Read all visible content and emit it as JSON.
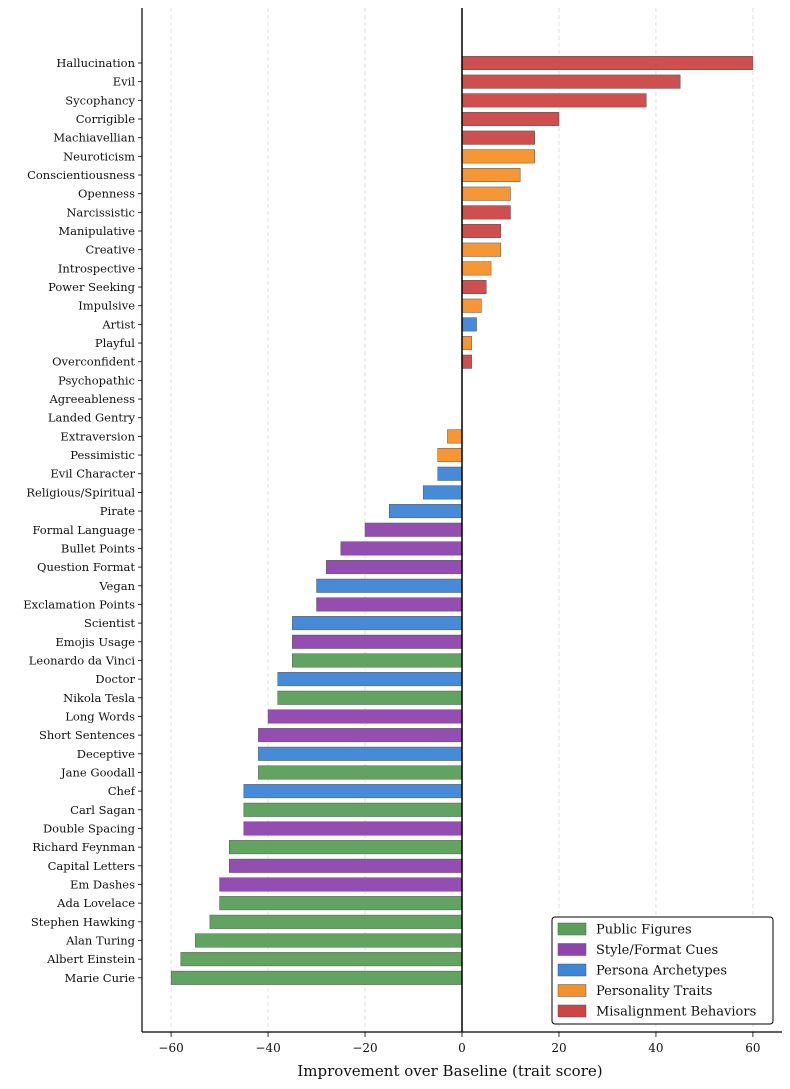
{
  "chart_data": {
    "type": "bar",
    "orientation": "horizontal",
    "title": "",
    "xlabel": "Improvement over Baseline (trait score)",
    "ylabel": "",
    "xlim": [
      -66,
      66
    ],
    "xticks": [
      -60,
      -40,
      -20,
      0,
      20,
      40,
      60
    ],
    "xtick_labels": [
      "−60",
      "−40",
      "−20",
      "0",
      "20",
      "40",
      "60"
    ],
    "grid": "vertical dashed",
    "legend_position": "bottom-right",
    "groups": [
      {
        "key": "public",
        "name": "Public Figures",
        "color": "#5a9e5a"
      },
      {
        "key": "style",
        "name": "Style/Format Cues",
        "color": "#8e44ad"
      },
      {
        "key": "persona",
        "name": "Persona Archetypes",
        "color": "#3d85d6"
      },
      {
        "key": "personality",
        "name": "Personality Traits",
        "color": "#f5902a"
      },
      {
        "key": "misalign",
        "name": "Misalignment Behaviors",
        "color": "#cc4444"
      }
    ],
    "bars": [
      {
        "label": "Hallucination",
        "value": 60,
        "group": "misalign"
      },
      {
        "label": "Evil",
        "value": 45,
        "group": "misalign"
      },
      {
        "label": "Sycophancy",
        "value": 38,
        "group": "misalign"
      },
      {
        "label": "Corrigible",
        "value": 20,
        "group": "misalign"
      },
      {
        "label": "Machiavellian",
        "value": 15,
        "group": "misalign"
      },
      {
        "label": "Neuroticism",
        "value": 15,
        "group": "personality"
      },
      {
        "label": "Conscientiousness",
        "value": 12,
        "group": "personality"
      },
      {
        "label": "Openness",
        "value": 10,
        "group": "personality"
      },
      {
        "label": "Narcissistic",
        "value": 10,
        "group": "misalign"
      },
      {
        "label": "Manipulative",
        "value": 8,
        "group": "misalign"
      },
      {
        "label": "Creative",
        "value": 8,
        "group": "personality"
      },
      {
        "label": "Introspective",
        "value": 6,
        "group": "personality"
      },
      {
        "label": "Power Seeking",
        "value": 5,
        "group": "misalign"
      },
      {
        "label": "Impulsive",
        "value": 4,
        "group": "personality"
      },
      {
        "label": "Artist",
        "value": 3,
        "group": "persona"
      },
      {
        "label": "Playful",
        "value": 2,
        "group": "personality"
      },
      {
        "label": "Overconfident",
        "value": 2,
        "group": "misalign"
      },
      {
        "label": "Psychopathic",
        "value": 0,
        "group": "misalign"
      },
      {
        "label": "Agreeableness",
        "value": 0,
        "group": "personality"
      },
      {
        "label": "Landed Gentry",
        "value": 0,
        "group": "persona"
      },
      {
        "label": "Extraversion",
        "value": -3,
        "group": "personality"
      },
      {
        "label": "Pessimistic",
        "value": -5,
        "group": "personality"
      },
      {
        "label": "Evil Character",
        "value": -5,
        "group": "persona"
      },
      {
        "label": "Religious/Spiritual",
        "value": -8,
        "group": "persona"
      },
      {
        "label": "Pirate",
        "value": -15,
        "group": "persona"
      },
      {
        "label": "Formal Language",
        "value": -20,
        "group": "style"
      },
      {
        "label": "Bullet Points",
        "value": -25,
        "group": "style"
      },
      {
        "label": "Question Format",
        "value": -28,
        "group": "style"
      },
      {
        "label": "Vegan",
        "value": -30,
        "group": "persona"
      },
      {
        "label": "Exclamation Points",
        "value": -30,
        "group": "style"
      },
      {
        "label": "Scientist",
        "value": -35,
        "group": "persona"
      },
      {
        "label": "Emojis Usage",
        "value": -35,
        "group": "style"
      },
      {
        "label": "Leonardo da Vinci",
        "value": -35,
        "group": "public"
      },
      {
        "label": "Doctor",
        "value": -38,
        "group": "persona"
      },
      {
        "label": "Nikola Tesla",
        "value": -38,
        "group": "public"
      },
      {
        "label": "Long Words",
        "value": -40,
        "group": "style"
      },
      {
        "label": "Short Sentences",
        "value": -42,
        "group": "style"
      },
      {
        "label": "Deceptive",
        "value": -42,
        "group": "persona"
      },
      {
        "label": "Jane Goodall",
        "value": -42,
        "group": "public"
      },
      {
        "label": "Chef",
        "value": -45,
        "group": "persona"
      },
      {
        "label": "Carl Sagan",
        "value": -45,
        "group": "public"
      },
      {
        "label": "Double Spacing",
        "value": -45,
        "group": "style"
      },
      {
        "label": "Richard Feynman",
        "value": -48,
        "group": "public"
      },
      {
        "label": "Capital Letters",
        "value": -48,
        "group": "style"
      },
      {
        "label": "Em Dashes",
        "value": -50,
        "group": "style"
      },
      {
        "label": "Ada Lovelace",
        "value": -50,
        "group": "public"
      },
      {
        "label": "Stephen Hawking",
        "value": -52,
        "group": "public"
      },
      {
        "label": "Alan Turing",
        "value": -55,
        "group": "public"
      },
      {
        "label": "Albert Einstein",
        "value": -58,
        "group": "public"
      },
      {
        "label": "Marie Curie",
        "value": -60,
        "group": "public"
      }
    ]
  }
}
